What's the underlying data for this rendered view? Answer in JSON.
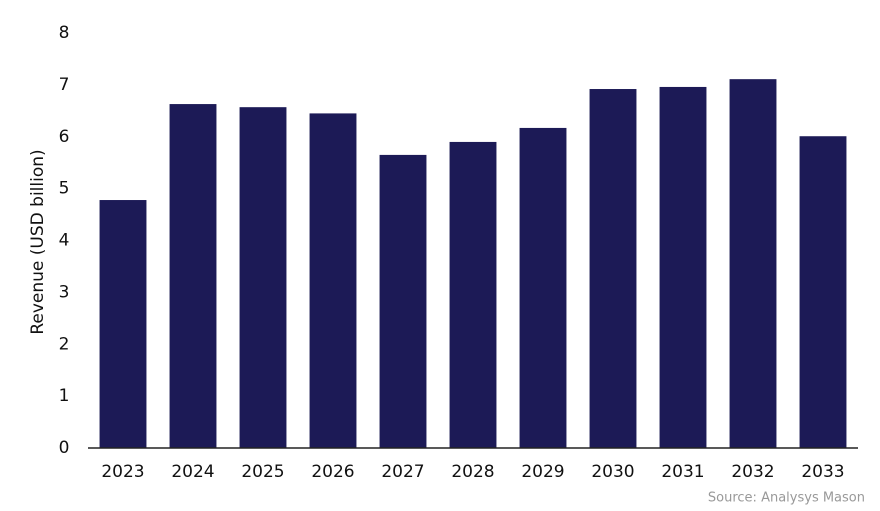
{
  "chart_data": {
    "type": "bar",
    "y_label": "Revenue (USD billion)",
    "source": "Source: Analysys Mason",
    "categories": [
      "2023",
      "2024",
      "2025",
      "2026",
      "2027",
      "2028",
      "2029",
      "2030",
      "2031",
      "2032",
      "2033"
    ],
    "values": [
      4.78,
      6.63,
      6.57,
      6.45,
      5.65,
      5.9,
      6.17,
      6.92,
      6.96,
      7.11,
      6.01
    ],
    "color": "#1c1a56",
    "ylim": [
      0,
      8
    ],
    "yticks": [
      0,
      1,
      2,
      3,
      4,
      5,
      6,
      7,
      8
    ],
    "grid": false
  }
}
